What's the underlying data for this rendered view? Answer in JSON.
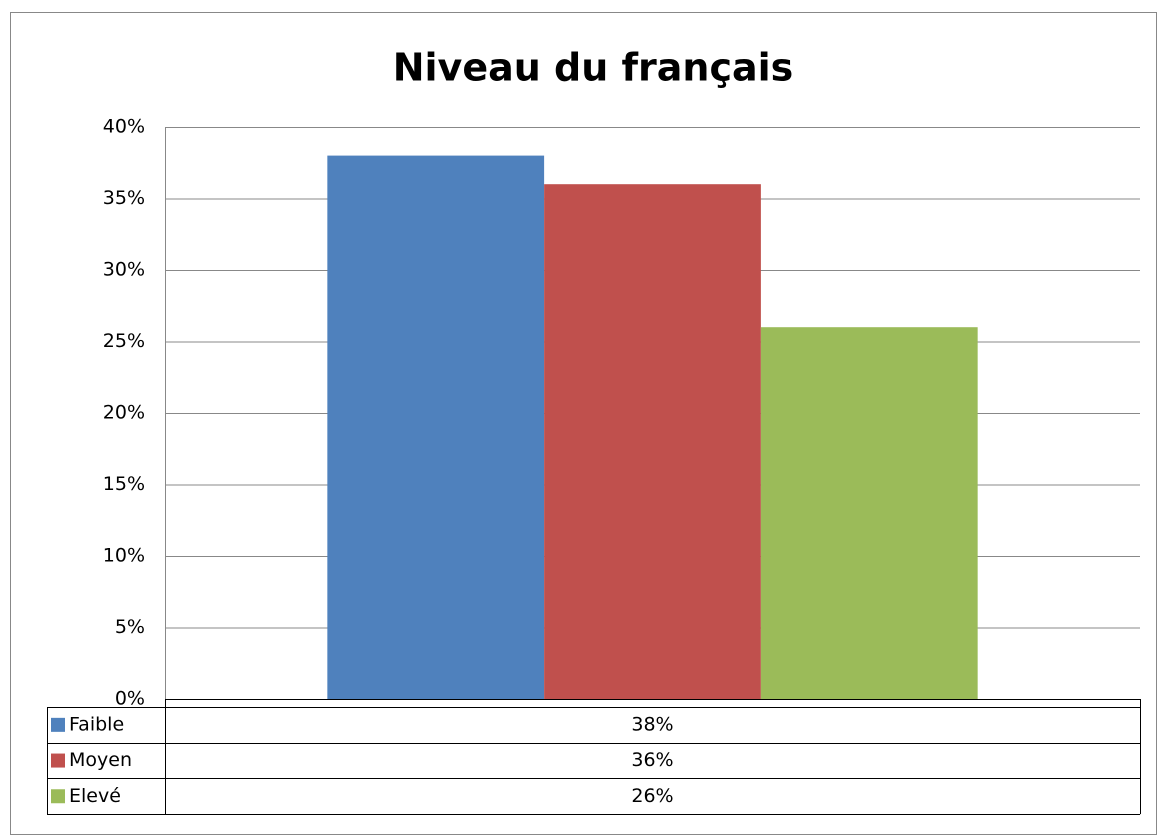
{
  "chart_data": {
    "type": "bar",
    "title": "Niveau du français",
    "categories": [
      null
    ],
    "series": [
      {
        "name": "Faible",
        "color": "#4f81bd",
        "values": [
          38
        ],
        "value_labels": [
          "38%"
        ]
      },
      {
        "name": "Moyen",
        "color": "#c0504d",
        "values": [
          36
        ],
        "value_labels": [
          "36%"
        ]
      },
      {
        "name": "Elevé",
        "color": "#9bbb59",
        "values": [
          26
        ],
        "value_labels": [
          "26%"
        ]
      }
    ],
    "ylim": [
      0,
      40
    ],
    "yticks": [
      {
        "value": 0,
        "label": "0%"
      },
      {
        "value": 5,
        "label": "5%"
      },
      {
        "value": 10,
        "label": "10%"
      },
      {
        "value": 15,
        "label": "15%"
      },
      {
        "value": 20,
        "label": "20%"
      },
      {
        "value": 25,
        "label": "25%"
      },
      {
        "value": 30,
        "label": "30%"
      },
      {
        "value": 35,
        "label": "35%"
      },
      {
        "value": 40,
        "label": "40%"
      }
    ],
    "grid": true,
    "legend": "data-table"
  }
}
